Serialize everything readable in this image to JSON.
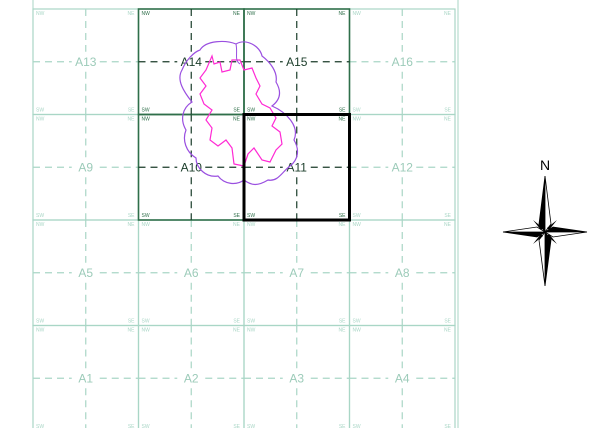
{
  "map": {
    "tiles": [
      {
        "id": "A1",
        "row": 0,
        "col": 0,
        "highlight": false
      },
      {
        "id": "A2",
        "row": 0,
        "col": 1,
        "highlight": false
      },
      {
        "id": "A3",
        "row": 0,
        "col": 2,
        "highlight": false
      },
      {
        "id": "A4",
        "row": 0,
        "col": 3,
        "highlight": false
      },
      {
        "id": "A5",
        "row": 1,
        "col": 0,
        "highlight": false
      },
      {
        "id": "A6",
        "row": 1,
        "col": 1,
        "highlight": false
      },
      {
        "id": "A7",
        "row": 1,
        "col": 2,
        "highlight": false
      },
      {
        "id": "A8",
        "row": 1,
        "col": 3,
        "highlight": false
      },
      {
        "id": "A9",
        "row": 2,
        "col": 0,
        "highlight": false
      },
      {
        "id": "A10",
        "row": 2,
        "col": 1,
        "highlight": true
      },
      {
        "id": "A11",
        "row": 2,
        "col": 2,
        "highlight": true
      },
      {
        "id": "A12",
        "row": 2,
        "col": 3,
        "highlight": false
      },
      {
        "id": "A13",
        "row": 3,
        "col": 0,
        "highlight": false
      },
      {
        "id": "A14",
        "row": 3,
        "col": 1,
        "highlight": true
      },
      {
        "id": "A15",
        "row": 3,
        "col": 2,
        "highlight": true
      },
      {
        "id": "A16",
        "row": 3,
        "col": 3,
        "highlight": false
      }
    ],
    "selected_tile": "A11",
    "corner_labels": [
      "NE",
      "NW",
      "SE",
      "SW"
    ],
    "compass_label": "N",
    "colors": {
      "grid_light": "#a9d6c6",
      "grid_dark": "#2f6f4a",
      "label_light": "#9ccbb9",
      "label_dark": "#1b3d2a",
      "selection": "#000000",
      "buffer": "#9a4fe0",
      "boundary": "#ff2ad4"
    },
    "icons": [
      "north-arrow-icon"
    ]
  }
}
